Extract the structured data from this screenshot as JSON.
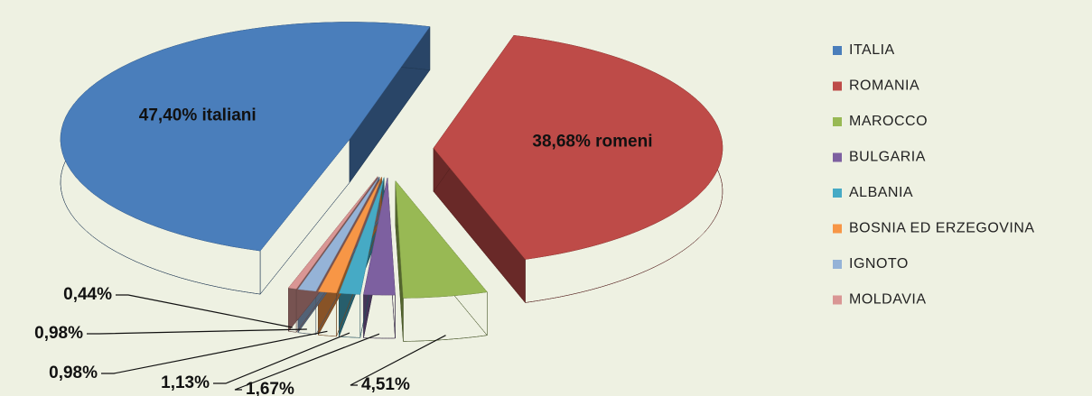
{
  "chart_data": {
    "type": "pie3d",
    "categories": [
      "ITALIA",
      "ROMANIA",
      "MAROCCO",
      "BULGARIA",
      "ALBANIA",
      "BOSNIA ED ERZEGOVINA",
      "IGNOTO",
      "MOLDAVIA"
    ],
    "values": [
      47.4,
      38.68,
      4.51,
      1.67,
      1.13,
      0.98,
      0.98,
      0.44
    ],
    "value_labels": [
      "47,40% italiani",
      "38,68% romeni",
      "4,51%",
      "1,67%",
      "1,13%",
      "0,98%",
      "0,98%",
      "0,44%"
    ],
    "colors": [
      "#4a7ebb",
      "#be4b48",
      "#98b954",
      "#7d60a0",
      "#46aac5",
      "#f79646",
      "#95b3d7",
      "#d99694"
    ],
    "legend": "right"
  }
}
